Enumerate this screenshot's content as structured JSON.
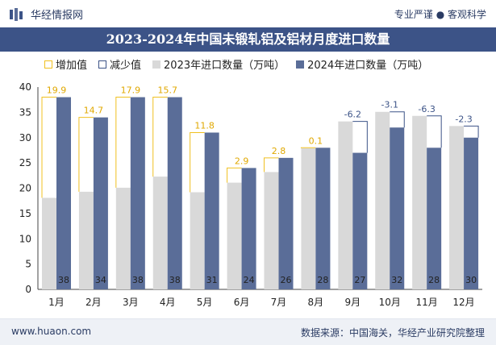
{
  "header": {
    "brand": "华经情报网",
    "slogan": "专业严谨 ● 客观科学"
  },
  "chart_data": {
    "type": "bar",
    "title": "2023-2024年中国未锻轧铝及铝材月度进口数量",
    "categories": [
      "1月",
      "2月",
      "3月",
      "4月",
      "5月",
      "6月",
      "7月",
      "8月",
      "9月",
      "10月",
      "11月",
      "12月"
    ],
    "series": [
      {
        "name": "2023年进口数量（万吨）",
        "values": [
          18.1,
          19.3,
          20.1,
          22.3,
          19.2,
          21.1,
          23.2,
          27.9,
          33.2,
          35.1,
          34.3,
          32.3
        ],
        "color": "#d9d9d9"
      },
      {
        "name": "2024年进口数量（万吨）",
        "values": [
          38,
          34,
          38,
          38,
          31,
          24,
          26,
          28,
          27,
          32,
          28,
          30
        ],
        "color": "#5a6d98"
      }
    ],
    "diff": {
      "labels": [
        "19.9",
        "14.7",
        "17.9",
        "15.7",
        "11.8",
        "2.9",
        "2.8",
        "0.1",
        "-6.2",
        "-3.1",
        "-6.3",
        "-2.3"
      ],
      "values": [
        19.9,
        14.7,
        17.9,
        15.7,
        11.8,
        2.9,
        2.8,
        0.1,
        -6.2,
        -3.1,
        -6.3,
        -2.3
      ]
    },
    "value_labels_2024": [
      "38",
      "34",
      "38",
      "38",
      "31",
      "24",
      "26",
      "28",
      "27",
      "32",
      "28",
      "30"
    ],
    "legend": [
      "增加值",
      "减少值",
      "2023年进口数量（万吨）",
      "2024年进口数量（万吨）"
    ],
    "yticks": [
      "0",
      "5",
      "10",
      "15",
      "20",
      "25",
      "30",
      "35",
      "40"
    ],
    "ylim": [
      0,
      40
    ],
    "colors": {
      "increase": "#f0c020",
      "decrease": "#3c5387"
    }
  },
  "footer": {
    "site": "www.huaon.com",
    "source": "数据来源：中国海关，华经产业研究院整理"
  }
}
